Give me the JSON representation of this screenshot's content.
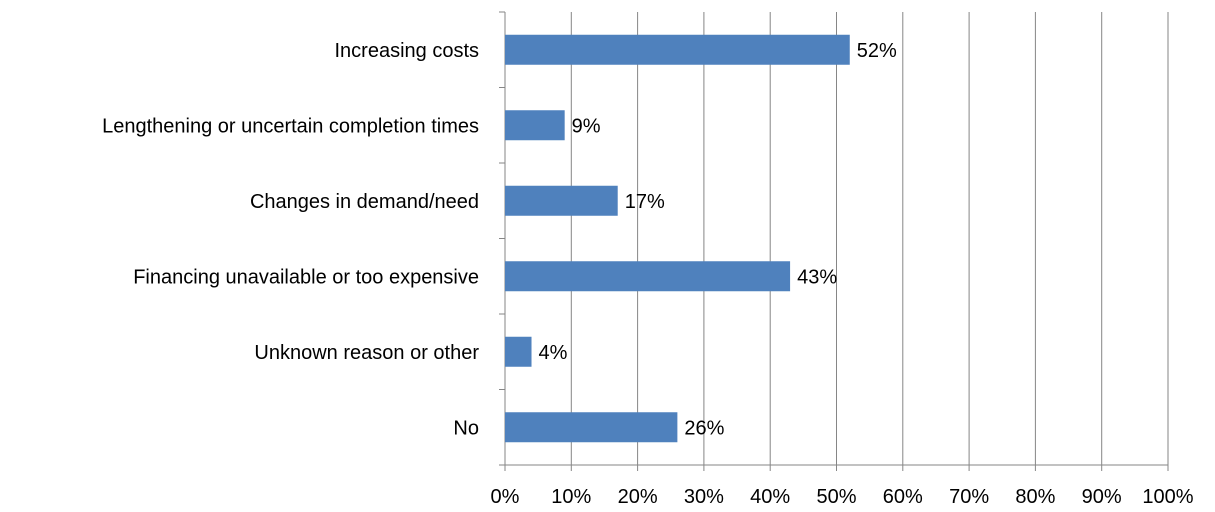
{
  "chart_data": {
    "type": "bar",
    "orientation": "horizontal",
    "title": "",
    "xlabel": "",
    "ylabel": "",
    "categories": [
      "Increasing costs",
      "Lengthening or uncertain completion times",
      "Changes in demand/need",
      "Financing unavailable or too expensive",
      "Unknown reason or other",
      "No"
    ],
    "values": [
      52,
      9,
      17,
      43,
      4,
      26
    ],
    "data_labels": [
      "52%",
      "9%",
      "17%",
      "43%",
      "4%",
      "26%"
    ],
    "xlim": [
      0,
      100
    ],
    "x_ticks": [
      0,
      10,
      20,
      30,
      40,
      50,
      60,
      70,
      80,
      90,
      100
    ],
    "x_tick_labels": [
      "0%",
      "10%",
      "20%",
      "30%",
      "40%",
      "50%",
      "60%",
      "70%",
      "80%",
      "90%",
      "100%"
    ],
    "grid": "vertical",
    "legend": "none",
    "colors": {
      "bar": "#4f81bd",
      "grid": "#868686",
      "axis": "#868686",
      "text": "#000000"
    }
  }
}
